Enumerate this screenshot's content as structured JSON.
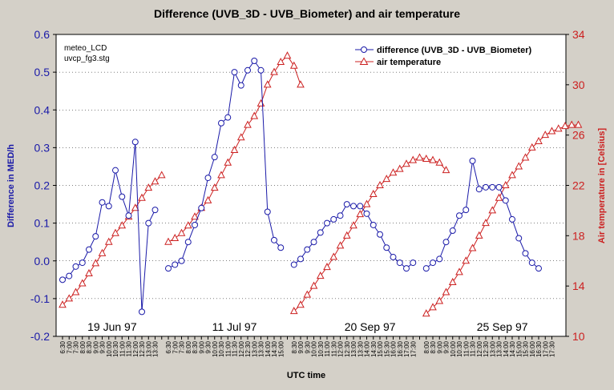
{
  "chart_data": {
    "type": "line",
    "title": "Difference (UVB_3D - UVB_Biometer) and air temperature",
    "xlabel": "UTC time",
    "ylabel_left": "Difference in MED/h",
    "ylabel_right": "Air temperature in [Celsius]",
    "ylim_left": [
      -0.2,
      0.6
    ],
    "yticks_left": [
      "0.6",
      "0.5",
      "0.4",
      "0.3",
      "0.2",
      "0.1",
      "0.0",
      "-0.1",
      "-0.2"
    ],
    "ylim_right": [
      10,
      34
    ],
    "yticks_right": [
      "34",
      "30",
      "26",
      "22",
      "18",
      "14",
      "10"
    ],
    "grid": true,
    "legend_position": "top-right",
    "note_lines": [
      "meteo_LCD",
      "uvcp_fg3.stg"
    ],
    "colors": {
      "difference": "#1a1aa8",
      "temperature": "#cc2020",
      "background": "#d4d0c8"
    },
    "x_ticks": [
      "6:30",
      "7:00",
      "7:30",
      "8:00",
      "8:30",
      "9:00",
      "9:30",
      "10:00",
      "10:30",
      "11:00",
      "11:30",
      "12:00",
      "12:30",
      "13:00",
      "13:30",
      "",
      "6:30",
      "7:00",
      "7:30",
      "8:00",
      "8:30",
      "9:00",
      "9:30",
      "10:00",
      "10:30",
      "11:00",
      "11:30",
      "12:00",
      "12:30",
      "13:00",
      "13:30",
      "14:00",
      "14:30",
      "15:00",
      "",
      "8:30",
      "9:00",
      "9:30",
      "10:00",
      "10:30",
      "11:00",
      "11:30",
      "12:00",
      "12:30",
      "13:00",
      "13:30",
      "14:00",
      "14:30",
      "15:00",
      "15:30",
      "16:00",
      "16:30",
      "17:00",
      "17:30",
      "",
      "8:00",
      "8:30",
      "9:00",
      "9:30",
      "10:00",
      "10:30",
      "11:00",
      "11:30",
      "12:00",
      "12:30",
      "13:00",
      "13:30",
      "14:00",
      "14:30",
      "15:00",
      "15:30",
      "16:00",
      "16:30",
      "17:00",
      "17:30"
    ],
    "segments": [
      {
        "date_label": "19 Jun 97",
        "start_index": 0,
        "difference": [
          -0.05,
          -0.04,
          -0.015,
          -0.005,
          0.03,
          0.065,
          0.155,
          0.145,
          0.24,
          0.17,
          0.12,
          0.315,
          -0.135,
          0.1,
          0.135
        ],
        "temperature": [
          12.5,
          13.0,
          13.5,
          14.2,
          15.0,
          15.8,
          16.6,
          17.5,
          18.2,
          18.8,
          19.5,
          20.2,
          21.0,
          21.8,
          22.3,
          22.8
        ]
      },
      {
        "date_label": "11 Jul 97",
        "start_index": 16,
        "difference": [
          -0.02,
          -0.01,
          0.0,
          0.05,
          0.095,
          0.14,
          0.22,
          0.275,
          0.365,
          0.38,
          0.5,
          0.465,
          0.505,
          0.53,
          0.505,
          0.13,
          0.055,
          0.035
        ],
        "temperature": [
          17.5,
          17.8,
          18.2,
          18.8,
          19.5,
          20.2,
          20.8,
          21.8,
          22.8,
          23.8,
          24.8,
          25.8,
          26.8,
          27.5,
          28.5,
          30.0,
          31.0,
          31.8,
          32.3,
          31.5,
          30.0
        ]
      },
      {
        "date_label": "20 Sep 97",
        "start_index": 35,
        "difference": [
          -0.01,
          0.005,
          0.03,
          0.05,
          0.075,
          0.1,
          0.11,
          0.12,
          0.15,
          0.145,
          0.145,
          0.125,
          0.095,
          0.07,
          0.035,
          0.01,
          -0.005,
          -0.02,
          -0.005
        ],
        "temperature": [
          12.0,
          12.5,
          13.3,
          14.0,
          14.8,
          15.5,
          16.3,
          17.2,
          18.0,
          18.8,
          19.7,
          20.5,
          21.3,
          22.0,
          22.5,
          23.0,
          23.3,
          23.7,
          24.0,
          24.2,
          24.1,
          24.0,
          23.8,
          23.2
        ]
      },
      {
        "date_label": "25 Sep 97",
        "start_index": 55,
        "difference": [
          -0.02,
          -0.005,
          0.005,
          0.05,
          0.08,
          0.12,
          0.135,
          0.265,
          0.19,
          0.195,
          0.195,
          0.195,
          0.16,
          0.11,
          0.06,
          0.02,
          -0.005,
          -0.02
        ],
        "temperature": [
          11.8,
          12.3,
          12.8,
          13.5,
          14.3,
          15.1,
          16.0,
          17.0,
          18.0,
          19.0,
          20.0,
          21.0,
          22.0,
          22.8,
          23.5,
          24.2,
          25.0,
          25.5,
          26.0,
          26.3,
          26.5,
          26.7,
          26.8,
          26.8
        ]
      }
    ],
    "series": [
      {
        "name": "difference (UVB_3D - UVB_Biometer)"
      },
      {
        "name": "air temperature"
      }
    ]
  }
}
